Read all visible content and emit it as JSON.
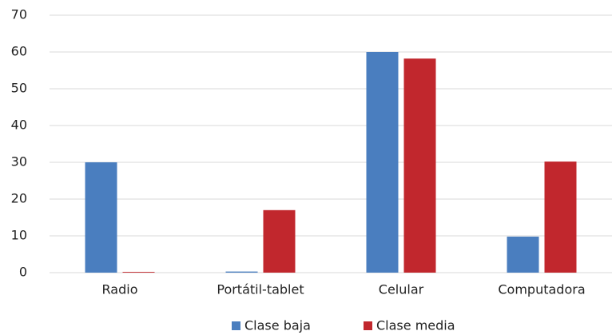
{
  "chart_data": {
    "type": "bar",
    "categories": [
      "Radio",
      "Portátil-tablet",
      "Celular",
      "Computadora"
    ],
    "series": [
      {
        "name": "Clase baja",
        "color": "#4a7ebf",
        "values": [
          30,
          0.3,
          60,
          9.8
        ]
      },
      {
        "name": "Clase media",
        "color": "#c1272d",
        "values": [
          0.2,
          17,
          58.2,
          30.2
        ]
      }
    ],
    "ylim": [
      0,
      70
    ],
    "yticks": [
      0,
      10,
      20,
      30,
      40,
      50,
      60,
      70
    ],
    "grid": true,
    "legend": "bottom"
  }
}
